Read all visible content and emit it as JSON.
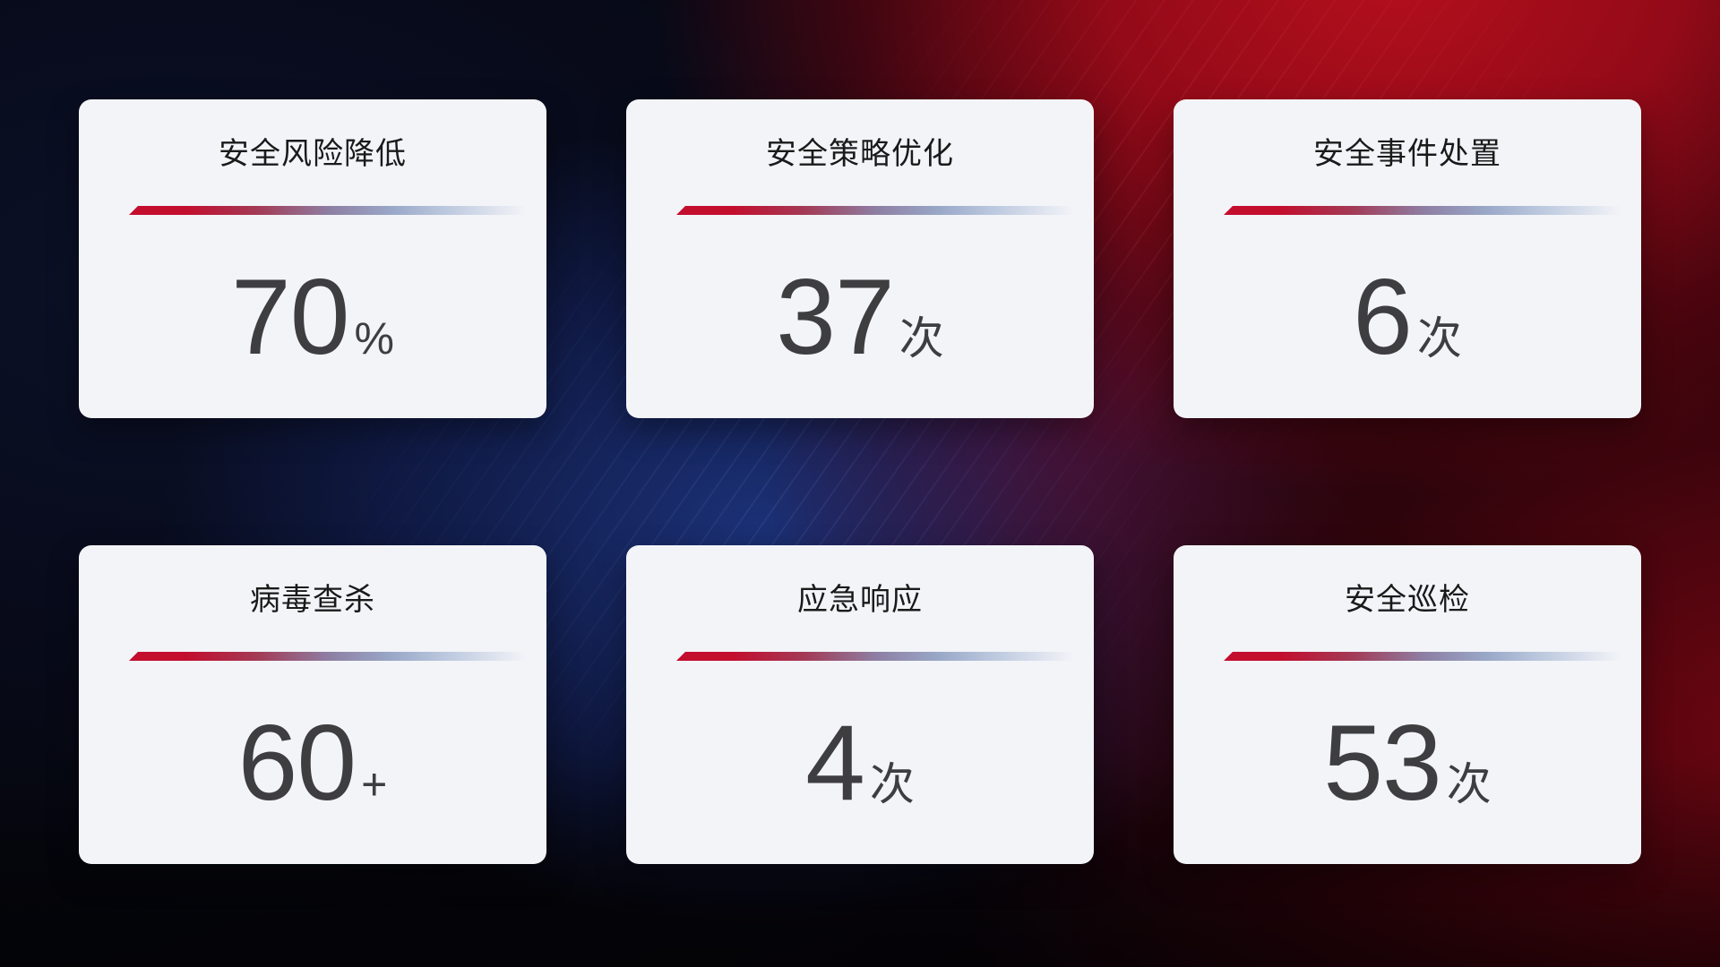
{
  "dashboard": {
    "cards": [
      {
        "title": "安全风险降低",
        "value": "70",
        "suffix": "%"
      },
      {
        "title": "安全策略优化",
        "value": "37",
        "suffix": "次"
      },
      {
        "title": "安全事件处置",
        "value": "6",
        "suffix": "次"
      },
      {
        "title": "病毒查杀",
        "value": "60",
        "suffix": "+"
      },
      {
        "title": "应急响应",
        "value": "4",
        "suffix": "次"
      },
      {
        "title": "安全巡检",
        "value": "53",
        "suffix": "次"
      }
    ]
  },
  "theme": {
    "accent-red": "#c30e2e",
    "divider-mid": "#8d7fa4",
    "divider-light": "#b9c6dd",
    "card-bg": "#f3f4f8",
    "title-color": "#1a1a1a",
    "value-color": "#3e3e41",
    "bg-navy": "#0b1128",
    "bg-blue": "#1c327a",
    "bg-red-bright": "#b30f1c",
    "bg-red-dark": "#5e0512",
    "bg-black": "#05060d"
  }
}
